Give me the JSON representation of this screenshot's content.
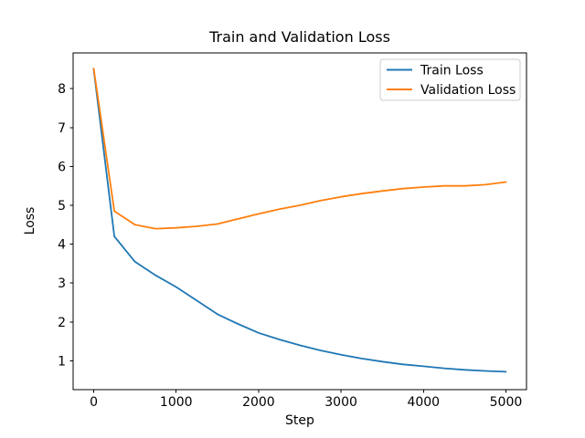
{
  "figure": {
    "background_color": "#ffffff",
    "text_color": "#000000",
    "legend_border_color": "#cccccc"
  },
  "chart_data": {
    "type": "line",
    "title": "Train and Validation Loss",
    "xlabel": "Step",
    "ylabel": "Loss",
    "grid": false,
    "legend_position": "upper right",
    "xlim": [
      -250,
      5250
    ],
    "ylim": [
      0.26,
      8.92
    ],
    "xticks": [
      0,
      1000,
      2000,
      3000,
      4000,
      5000
    ],
    "yticks": [
      1,
      2,
      3,
      4,
      5,
      6,
      7,
      8
    ],
    "x": [
      0,
      250,
      500,
      750,
      1000,
      1250,
      1500,
      1750,
      2000,
      2250,
      2500,
      2750,
      3000,
      3250,
      3500,
      3750,
      4000,
      4250,
      4500,
      4750,
      5000
    ],
    "series": [
      {
        "name": "Train Loss",
        "color": "#1f77b4",
        "values": [
          8.5,
          4.2,
          3.55,
          3.2,
          2.9,
          2.55,
          2.2,
          1.95,
          1.72,
          1.55,
          1.4,
          1.27,
          1.16,
          1.06,
          0.98,
          0.91,
          0.86,
          0.81,
          0.77,
          0.74,
          0.72
        ]
      },
      {
        "name": "Validation Loss",
        "color": "#ff7f0e",
        "values": [
          8.52,
          4.85,
          4.5,
          4.4,
          4.42,
          4.46,
          4.52,
          4.65,
          4.78,
          4.9,
          5.0,
          5.12,
          5.22,
          5.3,
          5.37,
          5.43,
          5.47,
          5.5,
          5.5,
          5.53,
          5.6
        ]
      }
    ]
  }
}
